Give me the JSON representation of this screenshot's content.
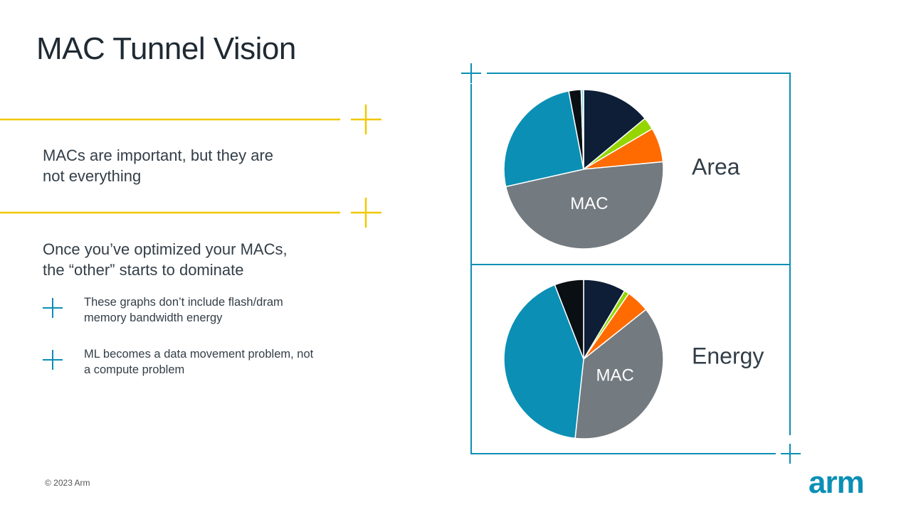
{
  "slide": {
    "title": "MAC Tunnel Vision",
    "point1": [
      "MACs are important, but they are",
      "not everything"
    ],
    "point2": [
      "Once you’ve optimized your MACs,",
      "the “other” starts to dominate"
    ],
    "bullets": [
      [
        "These graphs don’t include flash/dram",
        "memory bandwidth energy"
      ],
      [
        "ML becomes a data movement problem, not",
        "a compute problem"
      ]
    ],
    "footer": "© 2023 Arm",
    "logo": "arm"
  },
  "chart_data": [
    {
      "type": "pie",
      "title": "Area",
      "categories": [
        null,
        null,
        null,
        "MAC",
        null,
        null,
        null
      ],
      "values": [
        14,
        2.5,
        7,
        48,
        25.5,
        2.5,
        0.5
      ],
      "colors": [
        "#0d1e36",
        "#95d600",
        "#ff6b00",
        "#737a80",
        "#0b8fb5",
        "#0a0f14",
        "#7fd3e8"
      ]
    },
    {
      "type": "pie",
      "title": "Energy",
      "categories": [
        null,
        null,
        null,
        "MAC",
        null,
        null
      ],
      "values": [
        8.6,
        1,
        4.7,
        37.4,
        42.4,
        5.9
      ],
      "colors": [
        "#0d1e36",
        "#95d600",
        "#ff6b00",
        "#737a80",
        "#0b8fb5",
        "#0a0f14"
      ]
    }
  ]
}
